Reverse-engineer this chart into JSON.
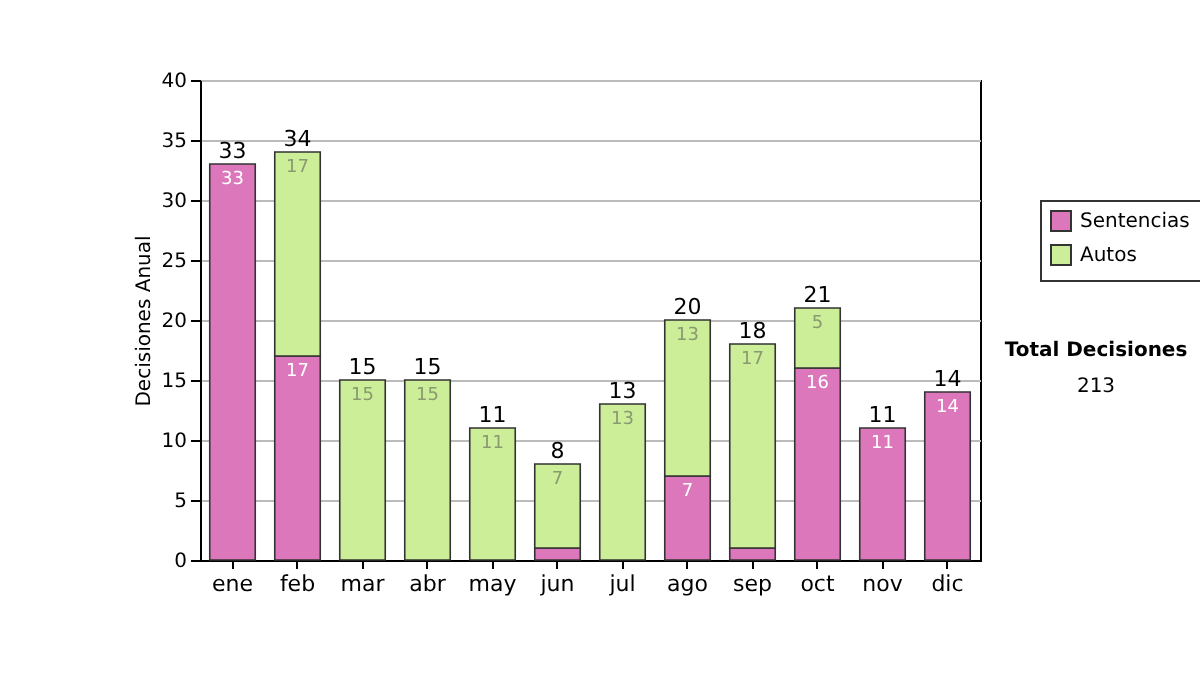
{
  "chart_data": {
    "type": "bar",
    "stacked": true,
    "ylabel": "Decisiones Anual",
    "categories": [
      "ene",
      "feb",
      "mar",
      "abr",
      "may",
      "jun",
      "jul",
      "ago",
      "sep",
      "oct",
      "nov",
      "dic"
    ],
    "series": [
      {
        "name": "Sentencias",
        "color": "#dd77bb",
        "values": [
          33,
          17,
          0,
          0,
          0,
          1,
          0,
          7,
          1,
          16,
          11,
          14
        ],
        "value_labels": [
          "33",
          "17",
          null,
          null,
          null,
          null,
          null,
          "7",
          null,
          "16",
          "11",
          "14"
        ]
      },
      {
        "name": "Autos",
        "color": "#ccee99",
        "values": [
          0,
          17,
          15,
          15,
          11,
          7,
          13,
          13,
          17,
          5,
          0,
          0
        ],
        "value_labels": [
          null,
          "17",
          "15",
          "15",
          "11",
          "7",
          "13",
          "13",
          "17",
          "5",
          null,
          null
        ]
      }
    ],
    "totals": [
      "33",
      "34",
      "15",
      "15",
      "11",
      "8",
      "13",
      "20",
      "18",
      "21",
      "11",
      "14"
    ],
    "ylim": [
      0,
      40
    ],
    "yticks": [
      0,
      5,
      10,
      15,
      20,
      25,
      30,
      35,
      40
    ],
    "grid": "y",
    "legend": "right",
    "annotations": [
      "Total Decisiones",
      "213"
    ]
  }
}
